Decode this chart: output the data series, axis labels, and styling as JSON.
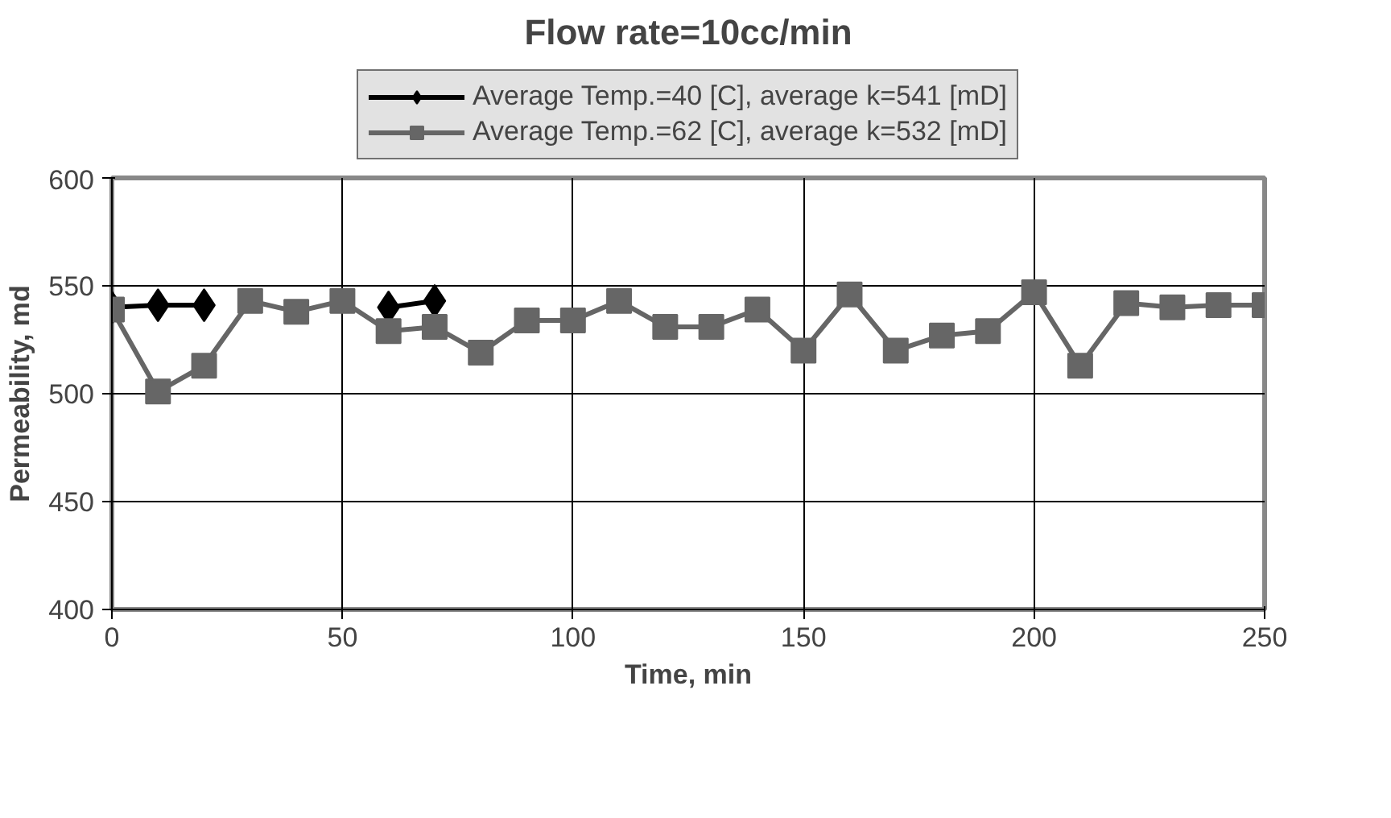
{
  "chart_data": {
    "type": "line",
    "title": "Flow rate=10cc/min",
    "xlabel": "Time, min",
    "ylabel": "Permeability, md",
    "xlim": [
      0,
      250
    ],
    "xticks": [
      0,
      50,
      100,
      150,
      200,
      250
    ],
    "ylim": [
      400,
      600
    ],
    "yticks": [
      400,
      450,
      500,
      550,
      600
    ],
    "grid": true,
    "legend": "top",
    "series": [
      {
        "name": "Average Temp.=40 [C], average k=541 [mD]",
        "color": "#000000",
        "marker": "diamond",
        "x": [
          0,
          10,
          20,
          30,
          40,
          50,
          60,
          70
        ],
        "values": [
          540,
          541,
          541,
          null,
          null,
          null,
          540,
          543
        ]
      },
      {
        "name": "Average Temp.=62 [C], average k=532 [mD]",
        "color": "#666666",
        "marker": "square",
        "x": [
          0,
          10,
          20,
          30,
          40,
          50,
          60,
          70,
          80,
          90,
          100,
          110,
          120,
          130,
          140,
          150,
          160,
          170,
          180,
          190,
          200,
          210,
          220,
          230,
          240,
          250
        ],
        "values": [
          539,
          501,
          513,
          543,
          538,
          543,
          529,
          531,
          519,
          534,
          534,
          543,
          531,
          531,
          539,
          520,
          546,
          520,
          527,
          529,
          547,
          513,
          542,
          540,
          541,
          541
        ]
      }
    ]
  }
}
